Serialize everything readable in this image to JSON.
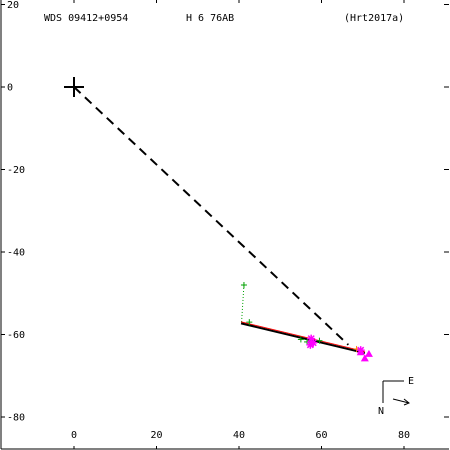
{
  "header": {
    "system": "WDS 09412+0954",
    "components": "H 6  76AB",
    "reference": "(Hrt2017a)"
  },
  "compass": {
    "east_label": "E",
    "north_label": "N"
  },
  "colors": {
    "axes": "#000000",
    "primary_marker": "#000000",
    "green": "#00a000",
    "magenta": "#ff00ff",
    "orange": "#ff8c00",
    "red": "#ff0000",
    "fit_line": "#000000"
  },
  "chart_data": {
    "type": "scatter",
    "title": "",
    "xlabel": "",
    "ylabel": "",
    "xlim": [
      -18,
      90
    ],
    "ylim": [
      -88,
      20
    ],
    "x_ticks": [
      {
        "value": 0,
        "label": "0"
      },
      {
        "value": 20,
        "label": "20"
      },
      {
        "value": 40,
        "label": "40"
      },
      {
        "value": 60,
        "label": "60"
      },
      {
        "value": 80,
        "label": "80"
      }
    ],
    "y_ticks": [
      {
        "value": 20,
        "label": "20"
      },
      {
        "value": 0,
        "label": "0"
      },
      {
        "value": -20,
        "label": "-20"
      },
      {
        "value": -40,
        "label": "-40"
      },
      {
        "value": -60,
        "label": "-60"
      },
      {
        "value": -80,
        "label": "-80"
      }
    ],
    "primary": {
      "x": 0,
      "y": 0
    },
    "predicted_vector": {
      "x1": 0,
      "y1": 0,
      "x2": 66.5,
      "y2": -62.5
    },
    "fit_line": {
      "x1": 40.5,
      "y1": -57.3,
      "x2": 70.5,
      "y2": -64.5
    },
    "plus_points": [
      {
        "x": 42.5,
        "y": -57.0,
        "color": "green"
      },
      {
        "x": 55.0,
        "y": -61.2,
        "color": "green"
      },
      {
        "x": 56.5,
        "y": -61.8,
        "color": "green"
      },
      {
        "x": 59.5,
        "y": -61.5,
        "color": "green"
      },
      {
        "x": 41.2,
        "y": -48.0,
        "color": "green"
      },
      {
        "x": 68.5,
        "y": -63.5,
        "color": "orange"
      }
    ],
    "residual_lines": [
      {
        "x1": 41.2,
        "y1": -48.0,
        "x2": 40.6,
        "y2": -57.3
      },
      {
        "x1": 55.0,
        "y1": -61.2,
        "x2": 55.2,
        "y2": -61.0
      },
      {
        "x1": 59.5,
        "y1": -61.5,
        "x2": 59.7,
        "y2": -61.5
      }
    ],
    "asterisk_points": [
      {
        "x": 57.5,
        "y": -61.0
      },
      {
        "x": 58.0,
        "y": -62.0
      },
      {
        "x": 57.3,
        "y": -62.5
      },
      {
        "x": 69.5,
        "y": -63.8
      }
    ],
    "triangle_points": [
      {
        "x": 69.5,
        "y": -64.3
      },
      {
        "x": 70.5,
        "y": -65.8
      },
      {
        "x": 71.5,
        "y": -64.7
      }
    ]
  }
}
